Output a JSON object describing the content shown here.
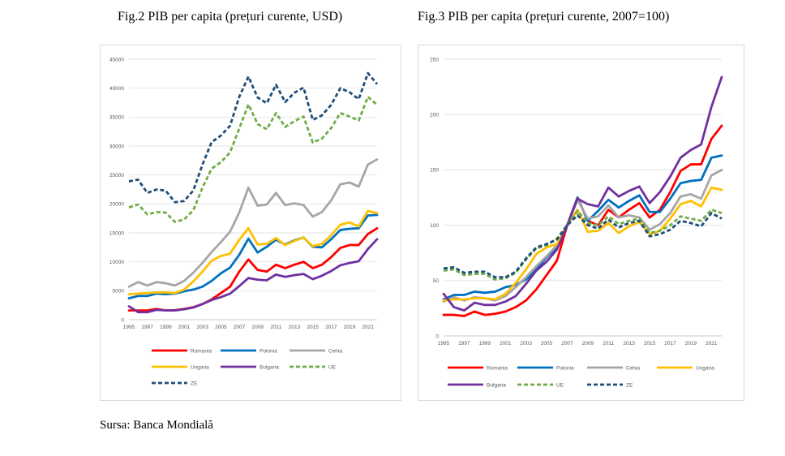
{
  "titles": {
    "fig2": "Fig.2 PIB per capita (prețuri curente, USD)",
    "fig3": "Fig.3 PIB per capita (prețuri curente, 2007=100)"
  },
  "source": "Sursa: Banca Mondială",
  "chart_data": [
    {
      "type": "line",
      "title": "Fig.2 PIB per capita (prețuri curente, USD)",
      "ylim": [
        0,
        45000
      ],
      "yticks": [
        0,
        5000,
        10000,
        15000,
        20000,
        25000,
        30000,
        35000,
        40000,
        45000
      ],
      "xticks": [
        1995,
        1997,
        1999,
        2001,
        2003,
        2005,
        2007,
        2009,
        2011,
        2013,
        2015,
        2017,
        2019,
        2021
      ],
      "x": [
        1995,
        1996,
        1997,
        1998,
        1999,
        2000,
        2001,
        2002,
        2003,
        2004,
        2005,
        2006,
        2007,
        2008,
        2009,
        2010,
        2011,
        2012,
        2013,
        2014,
        2015,
        2016,
        2017,
        2018,
        2019,
        2020,
        2021,
        2022
      ],
      "grid": true,
      "legend": "bottom",
      "series": [
        {
          "name": "Romania",
          "color": "#ff0000",
          "dash": false,
          "values": [
            1600,
            1600,
            1600,
            1850,
            1600,
            1650,
            1850,
            2150,
            2700,
            3500,
            4600,
            5700,
            8300,
            10400,
            8600,
            8300,
            9500,
            8900,
            9500,
            10000,
            8900,
            9500,
            10800,
            12400,
            12900,
            12900,
            14800,
            15800
          ]
        },
        {
          "name": "Polonia",
          "color": "#0070c0",
          "dash": false,
          "values": [
            3700,
            4100,
            4100,
            4500,
            4400,
            4500,
            4900,
            5200,
            5700,
            6700,
            8000,
            9000,
            11200,
            14000,
            11600,
            12600,
            13800,
            13000,
            13700,
            14200,
            12600,
            12500,
            13900,
            15500,
            15700,
            15800,
            18000,
            18100
          ]
        },
        {
          "name": "Cehia",
          "color": "#a6a6a6",
          "dash": false,
          "values": [
            5700,
            6500,
            5900,
            6500,
            6300,
            5900,
            6700,
            8100,
            9800,
            11700,
            13400,
            15200,
            18500,
            22800,
            19700,
            19900,
            21900,
            19800,
            20100,
            19800,
            17800,
            18600,
            20600,
            23400,
            23700,
            23000,
            26800,
            27700
          ]
        },
        {
          "name": "Ungaria",
          "color": "#ffc000",
          "dash": false,
          "values": [
            4400,
            4500,
            4600,
            4700,
            4700,
            4600,
            5200,
            6600,
            8300,
            10200,
            11000,
            11400,
            13800,
            15800,
            13000,
            13100,
            14100,
            12900,
            13600,
            14200,
            12700,
            13100,
            14600,
            16400,
            16800,
            16100,
            18800,
            18400
          ]
        },
        {
          "name": "Bulgaria",
          "color": "#7030a0",
          "dash": false,
          "values": [
            2300,
            1300,
            1300,
            1700,
            1600,
            1600,
            1800,
            2100,
            2700,
            3400,
            3900,
            4500,
            5800,
            7200,
            6900,
            6800,
            7800,
            7400,
            7700,
            7900,
            7000,
            7600,
            8400,
            9400,
            9800,
            10100,
            12200,
            13900
          ]
        },
        {
          "name": "UE",
          "color": "#70ad47",
          "dash": true,
          "values": [
            19400,
            19900,
            18200,
            18600,
            18500,
            16900,
            17300,
            18900,
            22800,
            26100,
            27200,
            28900,
            33000,
            37200,
            33800,
            32900,
            35700,
            33300,
            34300,
            35100,
            30600,
            31300,
            33100,
            35700,
            35100,
            34400,
            38500,
            37100
          ]
        },
        {
          "name": "ZE",
          "color": "#1f4e79",
          "dash": true,
          "values": [
            23900,
            24200,
            21900,
            22500,
            22300,
            20300,
            20500,
            22300,
            26800,
            30700,
            31800,
            33500,
            38500,
            42000,
            38400,
            37400,
            40600,
            37600,
            39200,
            40100,
            34500,
            35300,
            37100,
            40000,
            39300,
            38100,
            42600,
            40700
          ]
        }
      ]
    },
    {
      "type": "line",
      "title": "Fig.3 PIB per capita (prețuri curente, 2007=100)",
      "ylim": [
        0,
        250
      ],
      "yticks": [
        0,
        50,
        100,
        150,
        200,
        250
      ],
      "xticks": [
        1995,
        1997,
        1999,
        2001,
        2003,
        2005,
        2007,
        2009,
        2011,
        2013,
        2015,
        2017,
        2019,
        2021
      ],
      "x": [
        1995,
        1996,
        1997,
        1998,
        1999,
        2000,
        2001,
        2002,
        2003,
        2004,
        2005,
        2006,
        2007,
        2008,
        2009,
        2010,
        2011,
        2012,
        2013,
        2014,
        2015,
        2016,
        2017,
        2018,
        2019,
        2020,
        2021,
        2022
      ],
      "grid": true,
      "legend": "bottom",
      "series": [
        {
          "name": "Romania",
          "color": "#ff0000",
          "dash": false,
          "values": [
            19,
            19,
            18,
            22,
            19,
            20,
            22,
            26,
            32,
            42,
            55,
            68,
            100,
            125,
            104,
            100,
            114,
            107,
            114,
            120,
            107,
            114,
            130,
            149,
            155,
            155,
            178,
            190
          ]
        },
        {
          "name": "Polonia",
          "color": "#0070c0",
          "dash": false,
          "values": [
            33,
            37,
            37,
            40,
            39,
            40,
            44,
            46,
            51,
            60,
            71,
            80,
            100,
            125,
            104,
            113,
            123,
            116,
            122,
            127,
            112,
            112,
            124,
            138,
            140,
            141,
            161,
            163
          ]
        },
        {
          "name": "Cehia",
          "color": "#a6a6a6",
          "dash": false,
          "values": [
            31,
            35,
            32,
            35,
            34,
            32,
            36,
            44,
            53,
            63,
            72,
            82,
            100,
            123,
            106,
            108,
            118,
            107,
            109,
            107,
            96,
            101,
            111,
            126,
            128,
            124,
            145,
            150
          ]
        },
        {
          "name": "Ungaria",
          "color": "#ffc000",
          "dash": false,
          "values": [
            32,
            33,
            33,
            34,
            34,
            33,
            38,
            48,
            60,
            74,
            80,
            83,
            100,
            114,
            94,
            95,
            102,
            93,
            99,
            103,
            92,
            95,
            106,
            119,
            122,
            117,
            134,
            132
          ]
        },
        {
          "name": "Bulgaria",
          "color": "#7030a0",
          "dash": false,
          "values": [
            38,
            26,
            23,
            30,
            28,
            28,
            31,
            36,
            47,
            59,
            67,
            78,
            100,
            124,
            119,
            117,
            134,
            126,
            131,
            135,
            120,
            130,
            144,
            161,
            168,
            173,
            207,
            234
          ]
        },
        {
          "name": "UE",
          "color": "#70ad47",
          "dash": true,
          "values": [
            59,
            60,
            55,
            56,
            56,
            51,
            52,
            57,
            69,
            79,
            82,
            88,
            100,
            113,
            102,
            100,
            108,
            101,
            104,
            106,
            93,
            95,
            100,
            108,
            106,
            104,
            114,
            111
          ]
        },
        {
          "name": "ZE",
          "color": "#1f4e79",
          "dash": true,
          "values": [
            61,
            62,
            57,
            58,
            58,
            53,
            53,
            58,
            70,
            80,
            83,
            87,
            100,
            109,
            100,
            97,
            105,
            98,
            102,
            104,
            90,
            92,
            96,
            104,
            102,
            99,
            111,
            106
          ]
        }
      ]
    }
  ]
}
